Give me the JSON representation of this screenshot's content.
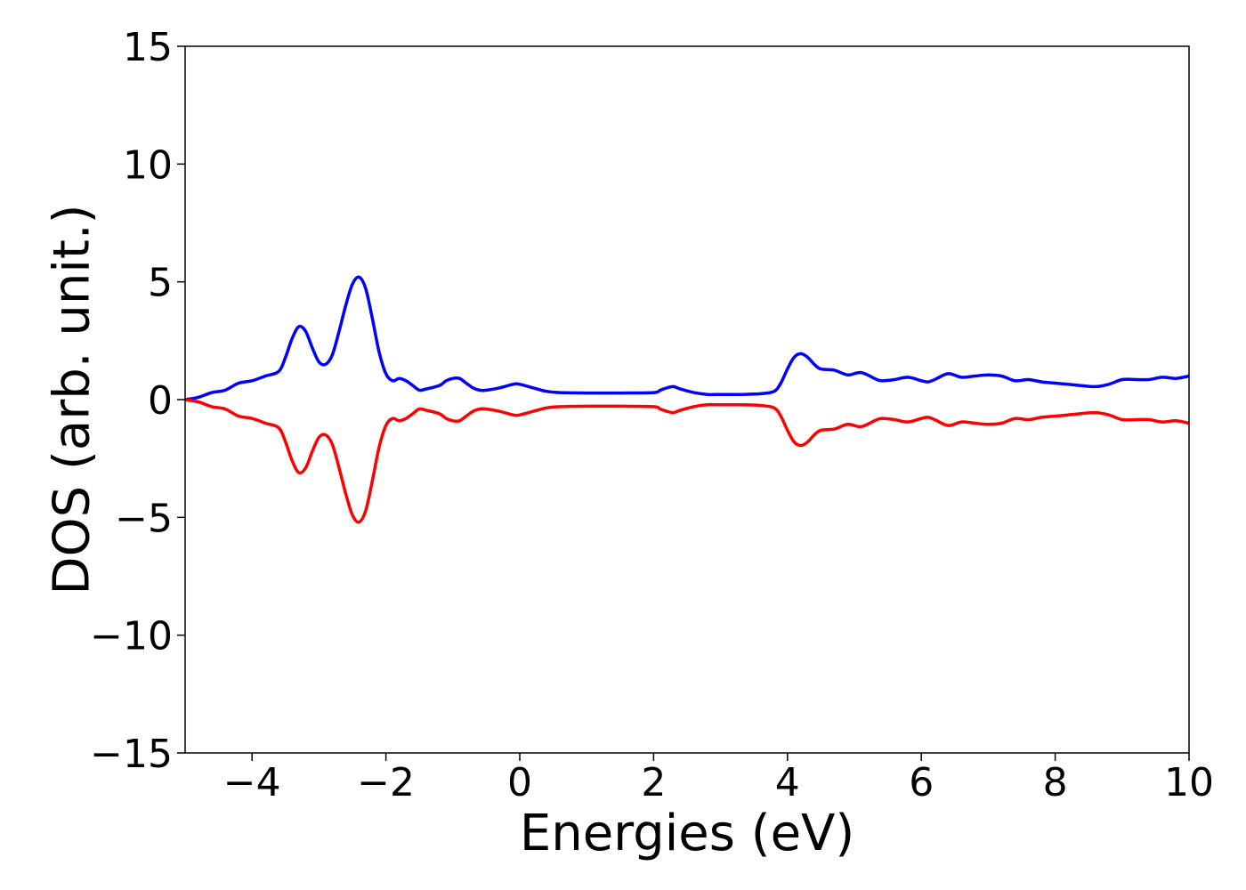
{
  "chart_data": {
    "type": "line",
    "title": "",
    "xlabel": "Energies (eV)",
    "ylabel": "DOS (arb. unit.)",
    "xlim": [
      -5,
      10
    ],
    "ylim": [
      -15,
      15
    ],
    "x_ticks": [
      -4,
      -2,
      0,
      2,
      4,
      6,
      8,
      10
    ],
    "x_tick_labels": [
      "−4",
      "−2",
      "0",
      "2",
      "4",
      "6",
      "8",
      "10"
    ],
    "y_ticks": [
      15,
      10,
      5,
      0,
      -5,
      -10,
      -15
    ],
    "y_tick_labels": [
      "15",
      "10",
      "5",
      "0",
      "−5",
      "−10",
      "−15"
    ],
    "grid": false,
    "legend": "none",
    "series": [
      {
        "color": "#0000ff",
        "points": [
          [
            -5.0,
            0.0
          ],
          [
            -4.8,
            0.1
          ],
          [
            -4.6,
            0.3
          ],
          [
            -4.4,
            0.4
          ],
          [
            -4.2,
            0.7
          ],
          [
            -4.0,
            0.8
          ],
          [
            -3.8,
            1.0
          ],
          [
            -3.6,
            1.2
          ],
          [
            -3.5,
            1.8
          ],
          [
            -3.4,
            2.6
          ],
          [
            -3.3,
            3.1
          ],
          [
            -3.2,
            2.9
          ],
          [
            -3.1,
            2.2
          ],
          [
            -3.0,
            1.6
          ],
          [
            -2.9,
            1.5
          ],
          [
            -2.8,
            1.9
          ],
          [
            -2.7,
            2.9
          ],
          [
            -2.6,
            4.0
          ],
          [
            -2.5,
            4.9
          ],
          [
            -2.4,
            5.2
          ],
          [
            -2.3,
            4.7
          ],
          [
            -2.2,
            3.4
          ],
          [
            -2.1,
            2.0
          ],
          [
            -2.0,
            1.1
          ],
          [
            -1.9,
            0.8
          ],
          [
            -1.8,
            0.9
          ],
          [
            -1.7,
            0.8
          ],
          [
            -1.6,
            0.6
          ],
          [
            -1.5,
            0.4
          ],
          [
            -1.4,
            0.45
          ],
          [
            -1.2,
            0.6
          ],
          [
            -1.1,
            0.8
          ],
          [
            -1.0,
            0.9
          ],
          [
            -0.9,
            0.9
          ],
          [
            -0.8,
            0.7
          ],
          [
            -0.7,
            0.5
          ],
          [
            -0.6,
            0.4
          ],
          [
            -0.5,
            0.4
          ],
          [
            -0.3,
            0.5
          ],
          [
            -0.1,
            0.65
          ],
          [
            0.0,
            0.65
          ],
          [
            0.2,
            0.5
          ],
          [
            0.4,
            0.35
          ],
          [
            0.6,
            0.3
          ],
          [
            1.0,
            0.28
          ],
          [
            1.5,
            0.28
          ],
          [
            2.0,
            0.3
          ],
          [
            2.1,
            0.4
          ],
          [
            2.2,
            0.5
          ],
          [
            2.3,
            0.55
          ],
          [
            2.4,
            0.45
          ],
          [
            2.6,
            0.3
          ],
          [
            2.8,
            0.22
          ],
          [
            3.0,
            0.22
          ],
          [
            3.3,
            0.22
          ],
          [
            3.6,
            0.25
          ],
          [
            3.8,
            0.35
          ],
          [
            3.9,
            0.7
          ],
          [
            4.0,
            1.3
          ],
          [
            4.1,
            1.8
          ],
          [
            4.2,
            1.95
          ],
          [
            4.3,
            1.8
          ],
          [
            4.4,
            1.5
          ],
          [
            4.5,
            1.3
          ],
          [
            4.7,
            1.25
          ],
          [
            4.9,
            1.05
          ],
          [
            5.1,
            1.15
          ],
          [
            5.3,
            0.9
          ],
          [
            5.4,
            0.8
          ],
          [
            5.6,
            0.85
          ],
          [
            5.8,
            0.95
          ],
          [
            6.0,
            0.8
          ],
          [
            6.1,
            0.75
          ],
          [
            6.2,
            0.85
          ],
          [
            6.4,
            1.1
          ],
          [
            6.6,
            0.95
          ],
          [
            6.8,
            1.0
          ],
          [
            7.0,
            1.05
          ],
          [
            7.2,
            1.0
          ],
          [
            7.4,
            0.8
          ],
          [
            7.6,
            0.85
          ],
          [
            7.8,
            0.75
          ],
          [
            8.0,
            0.7
          ],
          [
            8.3,
            0.62
          ],
          [
            8.6,
            0.55
          ],
          [
            8.8,
            0.65
          ],
          [
            9.0,
            0.85
          ],
          [
            9.2,
            0.85
          ],
          [
            9.4,
            0.85
          ],
          [
            9.6,
            0.95
          ],
          [
            9.8,
            0.9
          ],
          [
            10.0,
            1.0
          ]
        ]
      },
      {
        "color": "#ff0000",
        "points": [
          [
            -5.0,
            0.0
          ],
          [
            -4.8,
            -0.1
          ],
          [
            -4.6,
            -0.3
          ],
          [
            -4.4,
            -0.4
          ],
          [
            -4.2,
            -0.7
          ],
          [
            -4.0,
            -0.8
          ],
          [
            -3.8,
            -1.0
          ],
          [
            -3.6,
            -1.2
          ],
          [
            -3.5,
            -1.8
          ],
          [
            -3.4,
            -2.6
          ],
          [
            -3.3,
            -3.1
          ],
          [
            -3.2,
            -2.9
          ],
          [
            -3.1,
            -2.2
          ],
          [
            -3.0,
            -1.6
          ],
          [
            -2.9,
            -1.5
          ],
          [
            -2.8,
            -1.9
          ],
          [
            -2.7,
            -2.9
          ],
          [
            -2.6,
            -4.0
          ],
          [
            -2.5,
            -4.9
          ],
          [
            -2.4,
            -5.2
          ],
          [
            -2.3,
            -4.7
          ],
          [
            -2.2,
            -3.4
          ],
          [
            -2.1,
            -2.0
          ],
          [
            -2.0,
            -1.1
          ],
          [
            -1.9,
            -0.8
          ],
          [
            -1.8,
            -0.9
          ],
          [
            -1.7,
            -0.8
          ],
          [
            -1.6,
            -0.6
          ],
          [
            -1.5,
            -0.4
          ],
          [
            -1.4,
            -0.45
          ],
          [
            -1.2,
            -0.6
          ],
          [
            -1.1,
            -0.8
          ],
          [
            -1.0,
            -0.9
          ],
          [
            -0.9,
            -0.9
          ],
          [
            -0.8,
            -0.7
          ],
          [
            -0.7,
            -0.5
          ],
          [
            -0.6,
            -0.4
          ],
          [
            -0.5,
            -0.4
          ],
          [
            -0.3,
            -0.5
          ],
          [
            -0.1,
            -0.65
          ],
          [
            0.0,
            -0.65
          ],
          [
            0.2,
            -0.5
          ],
          [
            0.4,
            -0.35
          ],
          [
            0.6,
            -0.3
          ],
          [
            1.0,
            -0.28
          ],
          [
            1.5,
            -0.28
          ],
          [
            2.0,
            -0.3
          ],
          [
            2.1,
            -0.4
          ],
          [
            2.2,
            -0.5
          ],
          [
            2.3,
            -0.55
          ],
          [
            2.4,
            -0.45
          ],
          [
            2.6,
            -0.3
          ],
          [
            2.8,
            -0.22
          ],
          [
            3.0,
            -0.22
          ],
          [
            3.3,
            -0.22
          ],
          [
            3.6,
            -0.25
          ],
          [
            3.8,
            -0.35
          ],
          [
            3.9,
            -0.7
          ],
          [
            4.0,
            -1.3
          ],
          [
            4.1,
            -1.8
          ],
          [
            4.2,
            -1.95
          ],
          [
            4.3,
            -1.8
          ],
          [
            4.4,
            -1.5
          ],
          [
            4.5,
            -1.3
          ],
          [
            4.7,
            -1.25
          ],
          [
            4.9,
            -1.05
          ],
          [
            5.1,
            -1.15
          ],
          [
            5.3,
            -0.9
          ],
          [
            5.4,
            -0.8
          ],
          [
            5.6,
            -0.85
          ],
          [
            5.8,
            -0.95
          ],
          [
            6.0,
            -0.8
          ],
          [
            6.1,
            -0.75
          ],
          [
            6.2,
            -0.85
          ],
          [
            6.4,
            -1.1
          ],
          [
            6.6,
            -0.95
          ],
          [
            6.8,
            -1.0
          ],
          [
            7.0,
            -1.05
          ],
          [
            7.2,
            -1.0
          ],
          [
            7.4,
            -0.8
          ],
          [
            7.6,
            -0.85
          ],
          [
            7.8,
            -0.75
          ],
          [
            8.0,
            -0.7
          ],
          [
            8.3,
            -0.62
          ],
          [
            8.6,
            -0.55
          ],
          [
            8.8,
            -0.65
          ],
          [
            9.0,
            -0.85
          ],
          [
            9.2,
            -0.85
          ],
          [
            9.4,
            -0.85
          ],
          [
            9.6,
            -0.95
          ],
          [
            9.8,
            -0.9
          ],
          [
            10.0,
            -1.0
          ]
        ]
      }
    ]
  }
}
